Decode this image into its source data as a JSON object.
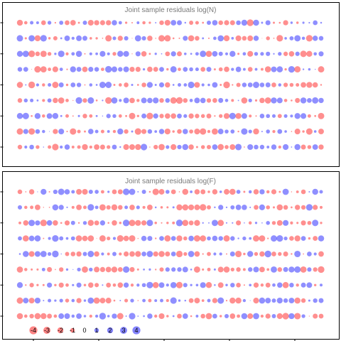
{
  "colors": {
    "positive": "#3333ff",
    "negative": "#ff3333",
    "frame": "#000000",
    "title": "#7a7a7a"
  },
  "chart_data": [
    {
      "type": "scatter",
      "subtype": "bubble-residual-grid",
      "title": "Joint sample residuals log(N)",
      "xlabel": "",
      "ylabel": "",
      "rows": 9,
      "columns": 52,
      "encoding": "bubble area proportional to |residual|; blue = positive, red = negative",
      "grid": false
    },
    {
      "type": "scatter",
      "subtype": "bubble-residual-grid",
      "title": "Joint sample residuals log(F)",
      "xlabel": "",
      "ylabel": "",
      "rows": 9,
      "columns": 52,
      "encoding": "bubble area proportional to |residual|; blue = positive, red = negative",
      "grid": false,
      "legend": {
        "placement": "bottom-left",
        "labels": [
          "-4",
          "-3",
          "-2",
          "-1",
          "0",
          "1",
          "2",
          "3",
          "4"
        ],
        "values": [
          -4,
          -3,
          -2,
          -1,
          0,
          1,
          2,
          3,
          4
        ]
      }
    }
  ]
}
